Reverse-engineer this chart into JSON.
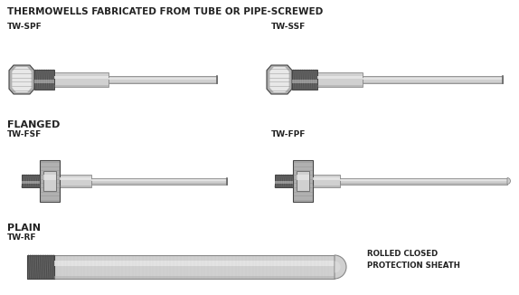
{
  "title": "THERMOWELLS FABRICATED FROM TUBE OR PIPE-SCREWED",
  "background_color": "#ffffff",
  "label_color": "#222222",
  "labels": {
    "tw_spf": "TW-SPF",
    "tw_ssf": "TW-SSF",
    "flanged": "FLANGED",
    "tw_fsf": "TW-FSF",
    "tw_fpf": "TW-FPF",
    "plain": "PLAIN",
    "tw_rf": "TW-RF",
    "rolled_closed": "ROLLED CLOSED\nPROTECTION SHEATH"
  },
  "c_white": "#ffffff",
  "c_vlight": "#e8e8e8",
  "c_light": "#d0d0d0",
  "c_mid": "#b0b0b0",
  "c_dark": "#888888",
  "c_darker": "#666666",
  "c_darkest": "#444444",
  "c_thread": "#555555"
}
